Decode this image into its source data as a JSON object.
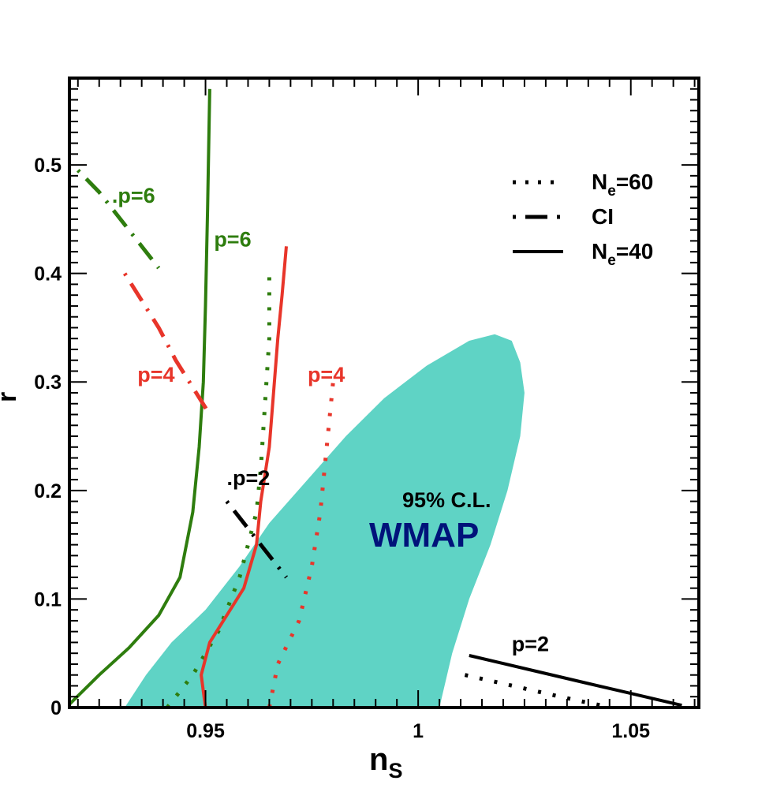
{
  "chart_data": {
    "type": "line",
    "title": "",
    "xlabel": "n",
    "xlabel_sub": "S",
    "ylabel": "r",
    "xlim": [
      0.918,
      1.066
    ],
    "ylim": [
      0,
      0.58
    ],
    "x_ticks": [
      0.95,
      1,
      1.05
    ],
    "x_tick_labels": [
      "0.95",
      "1",
      "1.05"
    ],
    "y_ticks": [
      0,
      0.1,
      0.2,
      0.3,
      0.4,
      0.5
    ],
    "y_tick_labels": [
      "0",
      "0.1",
      "0.2",
      "0.3",
      "0.4",
      "0.5"
    ],
    "grid": false,
    "legend_position": "top-right",
    "legend": [
      {
        "label": "N",
        "sub": "e",
        "suffix": "=60",
        "style": "dotted"
      },
      {
        "label": "CI",
        "sub": "",
        "suffix": "",
        "style": "dashdot"
      },
      {
        "label": "N",
        "sub": "e",
        "suffix": "=40",
        "style": "solid"
      }
    ],
    "region": {
      "name": "WMAP 95% C.L.",
      "label_main": "WMAP",
      "label_sub": "95% C.L.",
      "color": "#5fd3c5",
      "polygon": [
        [
          0.931,
          0
        ],
        [
          0.936,
          0.03
        ],
        [
          0.942,
          0.06
        ],
        [
          0.95,
          0.09
        ],
        [
          0.958,
          0.13
        ],
        [
          0.965,
          0.17
        ],
        [
          0.974,
          0.21
        ],
        [
          0.983,
          0.25
        ],
        [
          0.992,
          0.285
        ],
        [
          1.002,
          0.315
        ],
        [
          1.012,
          0.338
        ],
        [
          1.018,
          0.344
        ],
        [
          1.022,
          0.338
        ],
        [
          1.024,
          0.318
        ],
        [
          1.025,
          0.29
        ],
        [
          1.024,
          0.25
        ],
        [
          1.021,
          0.2
        ],
        [
          1.017,
          0.15
        ],
        [
          1.012,
          0.1
        ],
        [
          1.008,
          0.05
        ],
        [
          1.005,
          0
        ]
      ]
    },
    "series": [
      {
        "name": "p=6 N_e=40",
        "color": "#2e7d0e",
        "style": "solid",
        "x": [
          0.918,
          0.925,
          0.932,
          0.939,
          0.944,
          0.947,
          0.9485,
          0.9495,
          0.95,
          0.9505,
          0.951
        ],
        "y": [
          0.003,
          0.03,
          0.055,
          0.085,
          0.12,
          0.18,
          0.24,
          0.3,
          0.37,
          0.46,
          0.57
        ]
      },
      {
        "name": "p=6 N_e=60",
        "color": "#2e7d0e",
        "style": "dotted",
        "x": [
          0.941,
          0.947,
          0.953,
          0.958,
          0.962,
          0.963,
          0.964,
          0.965,
          0.965
        ],
        "y": [
          0.0,
          0.03,
          0.07,
          0.12,
          0.18,
          0.22,
          0.28,
          0.34,
          0.4
        ]
      },
      {
        "name": "p=6 CI",
        "color": "#2e7d0e",
        "style": "dashdot",
        "x": [
          0.92,
          0.925,
          0.929,
          0.934,
          0.937,
          0.939
        ],
        "y": [
          0.495,
          0.475,
          0.455,
          0.43,
          0.415,
          0.405
        ]
      },
      {
        "name": "p=4 N_e=40",
        "color": "#e8352a",
        "style": "solid",
        "x": [
          0.95,
          0.949,
          0.951,
          0.955,
          0.959,
          0.962,
          0.963,
          0.965,
          0.966,
          0.967,
          0.968,
          0.969
        ],
        "y": [
          0.0,
          0.03,
          0.06,
          0.085,
          0.11,
          0.15,
          0.19,
          0.24,
          0.29,
          0.34,
          0.38,
          0.425
        ]
      },
      {
        "name": "p=4 N_e=60",
        "color": "#e8352a",
        "style": "dotted",
        "x": [
          0.965,
          0.967,
          0.972,
          0.975,
          0.977,
          0.978,
          0.979,
          0.98
        ],
        "y": [
          0.0,
          0.04,
          0.08,
          0.13,
          0.18,
          0.22,
          0.26,
          0.3
        ]
      },
      {
        "name": "p=4 CI",
        "color": "#e8352a",
        "style": "dashdot",
        "x": [
          0.931,
          0.935,
          0.939,
          0.943,
          0.947,
          0.951
        ],
        "y": [
          0.4,
          0.375,
          0.35,
          0.32,
          0.295,
          0.27
        ]
      },
      {
        "name": "p=2 N_e=40",
        "color": "#000000",
        "style": "solid",
        "x": [
          1.012,
          1.025,
          1.038,
          1.05,
          1.062
        ],
        "y": [
          0.048,
          0.036,
          0.024,
          0.013,
          0.002
        ]
      },
      {
        "name": "p=2 N_e=60",
        "color": "#000000",
        "style": "dotted",
        "x": [
          1.011,
          1.02,
          1.03,
          1.038,
          1.043
        ],
        "y": [
          0.03,
          0.022,
          0.013,
          0.006,
          0.002
        ]
      },
      {
        "name": "p=2 CI",
        "color": "#000000",
        "style": "dashdot",
        "x": [
          0.955,
          0.958,
          0.961,
          0.964,
          0.967,
          0.969
        ],
        "y": [
          0.19,
          0.175,
          0.16,
          0.145,
          0.13,
          0.12
        ]
      }
    ],
    "annotations": [
      {
        "text": ".p=6",
        "x": 0.928,
        "y": 0.465,
        "color": "#2e7d0e"
      },
      {
        "text": "p=6",
        "x": 0.952,
        "y": 0.425,
        "color": "#2e7d0e"
      },
      {
        "text": "p=4",
        "x": 0.934,
        "y": 0.3,
        "color": "#e8352a"
      },
      {
        "text": "p=4",
        "x": 0.974,
        "y": 0.3,
        "color": "#e8352a"
      },
      {
        "text": ".p=2",
        "x": 0.955,
        "y": 0.205,
        "color": "#000000"
      },
      {
        "text": "p=2",
        "x": 1.022,
        "y": 0.052,
        "color": "#000000"
      }
    ]
  }
}
